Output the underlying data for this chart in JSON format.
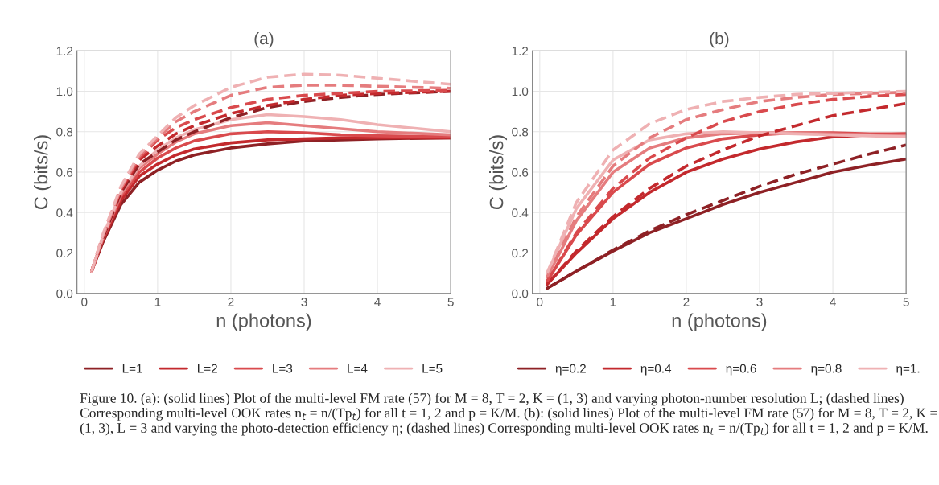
{
  "chart_data": [
    {
      "type": "line",
      "title": "(a)",
      "xlabel": "n (photons)",
      "ylabel": "C (bits/s)",
      "xlim": [
        -0.1,
        5.0
      ],
      "ylim": [
        0,
        1.2
      ],
      "xticks": [
        0,
        1,
        2,
        3,
        4,
        5
      ],
      "yticks": [
        {
          "value": 0,
          "label": "0.0"
        },
        {
          "value": 0.2,
          "label": "0.2"
        },
        {
          "value": 0.4,
          "label": "0.4"
        },
        {
          "value": 0.6,
          "label": "0.6"
        },
        {
          "value": 0.8,
          "label": "0.8"
        },
        {
          "value": 1.0,
          "label": "1.0"
        },
        {
          "value": 1.2,
          "label": "1.2"
        }
      ],
      "grid": true,
      "legend": "bottom",
      "x": [
        0.1,
        0.25,
        0.5,
        0.75,
        1,
        1.25,
        1.5,
        2,
        2.5,
        3,
        3.5,
        4,
        5
      ],
      "series": [
        {
          "name": "L=1",
          "color": "#8e2125",
          "line_style": "solid",
          "values": [
            0.11,
            0.25,
            0.44,
            0.55,
            0.61,
            0.655,
            0.685,
            0.72,
            0.74,
            0.755,
            0.76,
            0.765,
            0.77
          ]
        },
        {
          "name": "L=2",
          "color": "#c3292d",
          "line_style": "solid",
          "values": [
            0.11,
            0.26,
            0.46,
            0.58,
            0.64,
            0.685,
            0.715,
            0.745,
            0.76,
            0.765,
            0.77,
            0.77,
            0.77
          ]
        },
        {
          "name": "L=3",
          "color": "#d94a4d",
          "line_style": "solid",
          "values": [
            0.11,
            0.27,
            0.48,
            0.6,
            0.67,
            0.72,
            0.755,
            0.79,
            0.8,
            0.795,
            0.785,
            0.78,
            0.775
          ]
        },
        {
          "name": "L=4",
          "color": "#e57c7e",
          "line_style": "solid",
          "values": [
            0.11,
            0.27,
            0.49,
            0.62,
            0.69,
            0.75,
            0.79,
            0.83,
            0.845,
            0.83,
            0.815,
            0.8,
            0.785
          ]
        },
        {
          "name": "L=5",
          "color": "#efb1b3",
          "line_style": "solid",
          "values": [
            0.11,
            0.28,
            0.5,
            0.63,
            0.71,
            0.77,
            0.81,
            0.86,
            0.885,
            0.875,
            0.86,
            0.835,
            0.8
          ]
        },
        {
          "color": "#8e2125",
          "line_style": "dashed",
          "values": [
            0.11,
            0.27,
            0.5,
            0.64,
            0.7,
            0.76,
            0.8,
            0.87,
            0.92,
            0.95,
            0.97,
            0.985,
            1.0
          ]
        },
        {
          "color": "#c3292d",
          "line_style": "dashed",
          "values": [
            0.11,
            0.28,
            0.51,
            0.66,
            0.73,
            0.79,
            0.83,
            0.89,
            0.93,
            0.96,
            0.98,
            0.99,
            1.0
          ]
        },
        {
          "color": "#d94a4d",
          "line_style": "dashed",
          "values": [
            0.11,
            0.28,
            0.52,
            0.67,
            0.76,
            0.82,
            0.86,
            0.92,
            0.96,
            0.98,
            0.99,
            1.0,
            1.005
          ]
        },
        {
          "color": "#e57c7e",
          "line_style": "dashed",
          "values": [
            0.11,
            0.28,
            0.52,
            0.68,
            0.77,
            0.85,
            0.9,
            0.98,
            1.02,
            1.03,
            1.03,
            1.025,
            1.015
          ]
        },
        {
          "color": "#efb1b3",
          "line_style": "dashed",
          "values": [
            0.11,
            0.29,
            0.53,
            0.69,
            0.78,
            0.87,
            0.93,
            1.02,
            1.07,
            1.085,
            1.08,
            1.065,
            1.035
          ]
        }
      ],
      "annotations": [
        "Figure 10. (a): (solid lines) Plot of the multi-level FM rate (57) for M = 8, T = 2, K = (1, 3) and varying photon-number resolution L; (dashed lines) Corresponding multi-level OOK rates n$_{t}$ = n/(Tp$_{t}$) for all t = 1, 2 and p = K/M. (b): (solid lines) Plot of the multi-level FM rate (57) for M = 8, T = 2, K = (1, 3), L = 3 and varying the photo-detection efficiency η; (dashed lines) Corresponding multi-level OOK rates n$_{t}$ = n/(Tp$_{t}$) for all t = 1, 2 and p = K/M."
      ]
    },
    {
      "type": "line",
      "title": "(b)",
      "xlabel": "n (photons)",
      "ylabel": "C (bits/s)",
      "xlim": [
        -0.1,
        5.0
      ],
      "ylim": [
        0,
        1.2
      ],
      "xticks": [
        0,
        1,
        2,
        3,
        4,
        5
      ],
      "yticks": [
        {
          "value": 0,
          "label": "0.0"
        },
        {
          "value": 0.2,
          "label": "0.2"
        },
        {
          "value": 0.4,
          "label": "0.4"
        },
        {
          "value": 0.6,
          "label": "0.6"
        },
        {
          "value": 0.8,
          "label": "0.8"
        },
        {
          "value": 1.0,
          "label": "1.0"
        },
        {
          "value": 1.2,
          "label": "1.2"
        }
      ],
      "grid": true,
      "legend": "bottom",
      "x": [
        0.1,
        0.5,
        1,
        1.5,
        2,
        2.5,
        3,
        3.5,
        4,
        4.5,
        5
      ],
      "series": [
        {
          "name": "η=0.2",
          "color": "#8e2125",
          "line_style": "solid",
          "values": [
            0.025,
            0.11,
            0.21,
            0.3,
            0.37,
            0.44,
            0.5,
            0.55,
            0.6,
            0.635,
            0.665
          ]
        },
        {
          "name": "η=0.4",
          "color": "#c3292d",
          "line_style": "solid",
          "values": [
            0.045,
            0.2,
            0.37,
            0.5,
            0.6,
            0.665,
            0.715,
            0.75,
            0.775,
            0.785,
            0.79
          ]
        },
        {
          "name": "η=0.6",
          "color": "#d94a4d",
          "line_style": "solid",
          "values": [
            0.06,
            0.29,
            0.5,
            0.64,
            0.72,
            0.765,
            0.785,
            0.795,
            0.795,
            0.79,
            0.79
          ]
        },
        {
          "name": "η=0.8",
          "color": "#e57c7e",
          "line_style": "solid",
          "values": [
            0.08,
            0.36,
            0.6,
            0.72,
            0.77,
            0.79,
            0.795,
            0.795,
            0.79,
            0.785,
            0.78
          ]
        },
        {
          "name": "η=1.",
          "color": "#efb1b3",
          "line_style": "solid",
          "values": [
            0.1,
            0.42,
            0.66,
            0.76,
            0.79,
            0.8,
            0.795,
            0.79,
            0.785,
            0.78,
            0.775
          ]
        },
        {
          "color": "#8e2125",
          "line_style": "dashed",
          "values": [
            0.025,
            0.11,
            0.215,
            0.31,
            0.39,
            0.46,
            0.53,
            0.59,
            0.64,
            0.69,
            0.735
          ]
        },
        {
          "color": "#c3292d",
          "line_style": "dashed",
          "values": [
            0.045,
            0.21,
            0.38,
            0.52,
            0.63,
            0.71,
            0.78,
            0.83,
            0.88,
            0.91,
            0.94
          ]
        },
        {
          "color": "#d94a4d",
          "line_style": "dashed",
          "values": [
            0.06,
            0.3,
            0.52,
            0.67,
            0.77,
            0.85,
            0.9,
            0.935,
            0.96,
            0.975,
            0.985
          ]
        },
        {
          "color": "#e57c7e",
          "line_style": "dashed",
          "values": [
            0.08,
            0.38,
            0.63,
            0.77,
            0.86,
            0.91,
            0.95,
            0.97,
            0.985,
            0.99,
            0.995
          ]
        },
        {
          "color": "#efb1b3",
          "line_style": "dashed",
          "values": [
            0.1,
            0.45,
            0.71,
            0.84,
            0.91,
            0.95,
            0.97,
            0.985,
            0.99,
            0.995,
            1.0
          ]
        }
      ]
    }
  ]
}
